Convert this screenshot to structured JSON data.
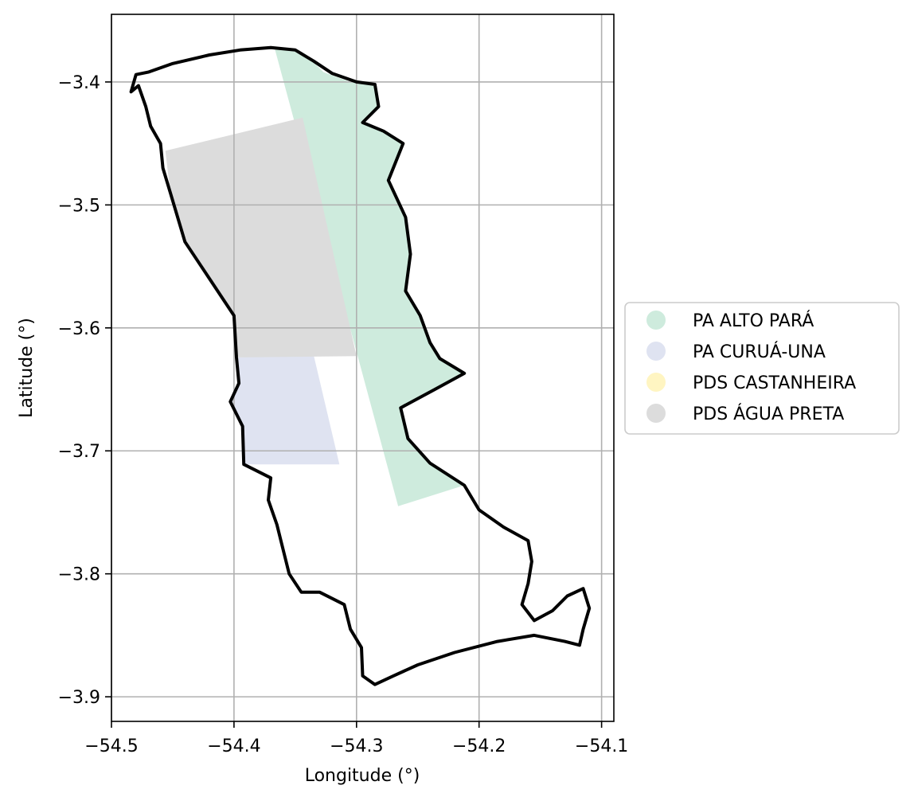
{
  "chart_data": {
    "type": "map",
    "xlabel": "Longitude (°)",
    "ylabel": "Latitude (°)",
    "xlim": [
      -54.5,
      -54.09
    ],
    "ylim": [
      -3.92,
      -3.345
    ],
    "grid": true,
    "legend_placement": "center-right-outside",
    "xticks": [
      {
        "value": -54.5,
        "label": "−54.5"
      },
      {
        "value": -54.4,
        "label": "−54.4"
      },
      {
        "value": -54.3,
        "label": "−54.3"
      },
      {
        "value": -54.2,
        "label": "−54.2"
      },
      {
        "value": -54.1,
        "label": "−54.1"
      }
    ],
    "yticks": [
      {
        "value": -3.4,
        "label": "−3.4"
      },
      {
        "value": -3.5,
        "label": "−3.5"
      },
      {
        "value": -3.6,
        "label": "−3.6"
      },
      {
        "value": -3.7,
        "label": "−3.7"
      },
      {
        "value": -3.8,
        "label": "−3.8"
      },
      {
        "value": -3.9,
        "label": "−3.9"
      }
    ],
    "areas": [
      {
        "name": "PA ALTO PARÁ",
        "color": "#ceebdd",
        "polygon": [
          [
            -54.367,
            -3.372
          ],
          [
            -54.342,
            -3.377
          ],
          [
            -54.327,
            -3.392
          ],
          [
            -54.305,
            -3.4
          ],
          [
            -54.285,
            -3.402
          ],
          [
            -54.282,
            -3.42
          ],
          [
            -54.295,
            -3.433
          ],
          [
            -54.278,
            -3.44
          ],
          [
            -54.262,
            -3.45
          ],
          [
            -54.274,
            -3.48
          ],
          [
            -54.26,
            -3.51
          ],
          [
            -54.256,
            -3.54
          ],
          [
            -54.26,
            -3.57
          ],
          [
            -54.248,
            -3.59
          ],
          [
            -54.24,
            -3.612
          ],
          [
            -54.232,
            -3.625
          ],
          [
            -54.212,
            -3.637
          ],
          [
            -54.236,
            -3.65
          ],
          [
            -54.264,
            -3.665
          ],
          [
            -54.258,
            -3.69
          ],
          [
            -54.24,
            -3.71
          ],
          [
            -54.212,
            -3.728
          ],
          [
            -54.266,
            -3.745
          ]
        ]
      },
      {
        "name": "PA CURUÁ-UNA",
        "color": "#dfe3f1",
        "polygon": [
          [
            -54.398,
            -3.624
          ],
          [
            -54.335,
            -3.622
          ],
          [
            -54.314,
            -3.711
          ],
          [
            -54.391,
            -3.711
          ],
          [
            -54.393,
            -3.68
          ],
          [
            -54.403,
            -3.66
          ],
          [
            -54.396,
            -3.645
          ]
        ]
      },
      {
        "name": "PDS CASTANHEIRA",
        "color": "#fff5c2",
        "polygon": []
      },
      {
        "name": "PDS ÁGUA PRETA",
        "color": "#dcdcdc",
        "polygon": [
          [
            -54.456,
            -3.456
          ],
          [
            -54.344,
            -3.429
          ],
          [
            -54.3,
            -3.623
          ],
          [
            -54.398,
            -3.624
          ],
          [
            -54.4,
            -3.59
          ],
          [
            -54.42,
            -3.56
          ],
          [
            -54.44,
            -3.53
          ],
          [
            -54.452,
            -3.49
          ]
        ]
      }
    ],
    "boundary": {
      "color": "#000000",
      "polygon": [
        [
          -54.484,
          -3.408
        ],
        [
          -54.48,
          -3.394
        ],
        [
          -54.47,
          -3.392
        ],
        [
          -54.45,
          -3.385
        ],
        [
          -54.42,
          -3.378
        ],
        [
          -54.395,
          -3.374
        ],
        [
          -54.37,
          -3.372
        ],
        [
          -54.35,
          -3.374
        ],
        [
          -54.335,
          -3.383
        ],
        [
          -54.32,
          -3.393
        ],
        [
          -54.3,
          -3.4
        ],
        [
          -54.285,
          -3.402
        ],
        [
          -54.282,
          -3.42
        ],
        [
          -54.295,
          -3.433
        ],
        [
          -54.278,
          -3.44
        ],
        [
          -54.262,
          -3.45
        ],
        [
          -54.274,
          -3.48
        ],
        [
          -54.26,
          -3.51
        ],
        [
          -54.256,
          -3.54
        ],
        [
          -54.26,
          -3.57
        ],
        [
          -54.248,
          -3.59
        ],
        [
          -54.24,
          -3.612
        ],
        [
          -54.232,
          -3.625
        ],
        [
          -54.212,
          -3.637
        ],
        [
          -54.236,
          -3.65
        ],
        [
          -54.264,
          -3.665
        ],
        [
          -54.258,
          -3.69
        ],
        [
          -54.24,
          -3.71
        ],
        [
          -54.212,
          -3.728
        ],
        [
          -54.2,
          -3.748
        ],
        [
          -54.18,
          -3.762
        ],
        [
          -54.16,
          -3.773
        ],
        [
          -54.157,
          -3.79
        ],
        [
          -54.16,
          -3.808
        ],
        [
          -54.165,
          -3.825
        ],
        [
          -54.155,
          -3.838
        ],
        [
          -54.14,
          -3.83
        ],
        [
          -54.128,
          -3.818
        ],
        [
          -54.115,
          -3.812
        ],
        [
          -54.11,
          -3.828
        ],
        [
          -54.115,
          -3.845
        ],
        [
          -54.118,
          -3.858
        ],
        [
          -54.13,
          -3.855
        ],
        [
          -54.155,
          -3.85
        ],
        [
          -54.185,
          -3.855
        ],
        [
          -54.22,
          -3.864
        ],
        [
          -54.25,
          -3.874
        ],
        [
          -54.27,
          -3.883
        ],
        [
          -54.285,
          -3.89
        ],
        [
          -54.295,
          -3.883
        ],
        [
          -54.296,
          -3.86
        ],
        [
          -54.305,
          -3.845
        ],
        [
          -54.31,
          -3.825
        ],
        [
          -54.33,
          -3.815
        ],
        [
          -54.345,
          -3.815
        ],
        [
          -54.355,
          -3.8
        ],
        [
          -54.36,
          -3.78
        ],
        [
          -54.365,
          -3.76
        ],
        [
          -54.372,
          -3.74
        ],
        [
          -54.37,
          -3.722
        ],
        [
          -54.392,
          -3.711
        ],
        [
          -54.393,
          -3.68
        ],
        [
          -54.403,
          -3.66
        ],
        [
          -54.396,
          -3.645
        ],
        [
          -54.398,
          -3.624
        ],
        [
          -54.4,
          -3.59
        ],
        [
          -54.42,
          -3.56
        ],
        [
          -54.44,
          -3.53
        ],
        [
          -54.452,
          -3.49
        ],
        [
          -54.458,
          -3.47
        ],
        [
          -54.46,
          -3.45
        ],
        [
          -54.468,
          -3.436
        ],
        [
          -54.472,
          -3.42
        ],
        [
          -54.478,
          -3.403
        ]
      ]
    },
    "legend": [
      {
        "label": "PA ALTO PARÁ",
        "color": "#ceebdd"
      },
      {
        "label": "PA CURUÁ-UNA",
        "color": "#dfe3f1"
      },
      {
        "label": "PDS CASTANHEIRA",
        "color": "#fff5c2"
      },
      {
        "label": "PDS ÁGUA PRETA",
        "color": "#dcdcdc"
      }
    ]
  }
}
